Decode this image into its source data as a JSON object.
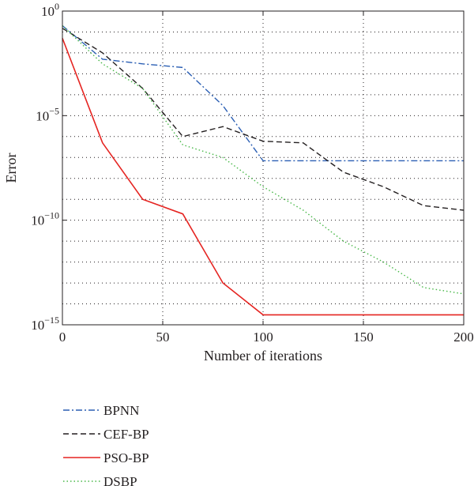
{
  "chart_data": {
    "type": "line",
    "title": "",
    "xlabel": "Number of iterations",
    "ylabel": "Error",
    "xlim": [
      0,
      200
    ],
    "ylim": [
      1e-15,
      1
    ],
    "yscale": "log",
    "grid": true,
    "x_ticks": [
      0,
      50,
      100,
      150,
      200
    ],
    "y_ticks": [
      {
        "value": 1,
        "base": "10",
        "exp": "0"
      },
      {
        "value": 1e-05,
        "base": "10",
        "exp": "−5"
      },
      {
        "value": 1e-10,
        "base": "10",
        "exp": "−10"
      },
      {
        "value": 1e-15,
        "base": "10",
        "exp": "−15"
      }
    ],
    "legend_position": "below",
    "series": [
      {
        "name": "BPNN",
        "color": "#2b5fb4",
        "style": "dashdot",
        "x": [
          0,
          20,
          40,
          60,
          80,
          100,
          120,
          140,
          160,
          180,
          200
        ],
        "y": [
          0.2,
          0.005,
          0.003,
          0.002,
          3e-05,
          7e-08,
          7e-08,
          7e-08,
          7e-08,
          7e-08,
          7e-08
        ]
      },
      {
        "name": "CEF-BP",
        "color": "#231f20",
        "style": "dashed",
        "x": [
          0,
          20,
          40,
          60,
          80,
          100,
          120,
          140,
          160,
          180,
          200
        ],
        "y": [
          0.15,
          0.01,
          0.0002,
          1e-06,
          3e-06,
          6e-07,
          5e-07,
          2e-08,
          4e-09,
          5e-10,
          3e-10
        ]
      },
      {
        "name": "PSO-BP",
        "color": "#e52421",
        "style": "solid",
        "x": [
          0,
          20,
          40,
          60,
          80,
          100,
          120,
          140,
          160,
          180,
          200
        ],
        "y": [
          0.05,
          5e-07,
          1e-09,
          2e-10,
          1e-13,
          3e-15,
          3e-15,
          3e-15,
          3e-15,
          3e-15,
          3e-15
        ]
      },
      {
        "name": "DSBP",
        "color": "#48b848",
        "style": "dotted",
        "x": [
          0,
          20,
          40,
          60,
          80,
          100,
          120,
          140,
          160,
          180,
          200
        ],
        "y": [
          0.2,
          0.003,
          0.0002,
          4e-07,
          1e-07,
          4e-09,
          3e-10,
          1e-11,
          1e-12,
          6e-14,
          3e-14
        ]
      }
    ]
  }
}
